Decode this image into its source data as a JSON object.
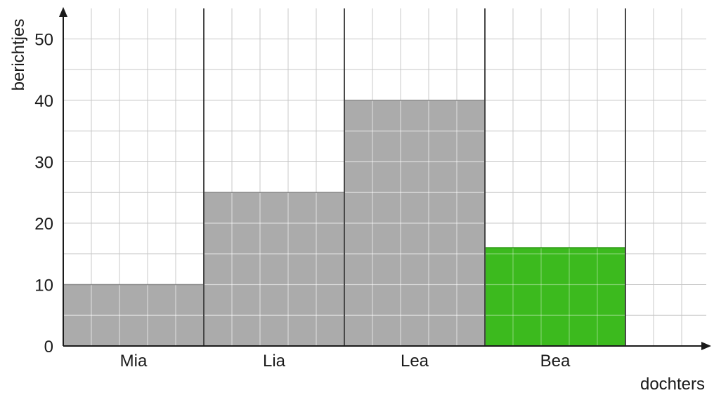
{
  "chart_data": {
    "type": "bar",
    "categories": [
      "Mia",
      "Lia",
      "Lea",
      "Bea"
    ],
    "series": [
      {
        "values": [
          10,
          25,
          40,
          16
        ]
      }
    ],
    "xlabel": "dochters",
    "ylabel": "berichtjes",
    "ylim": [
      0,
      55
    ],
    "yticks": [
      0,
      10,
      20,
      30,
      40,
      50
    ],
    "grid": true,
    "colors": {
      "bar": "#ababab",
      "highlight_bar": "#3cba1e",
      "grid_minor": "#c8c8c8",
      "grid_major": "#333333",
      "axis": "#1a1a1a"
    },
    "highlight_category": "Bea"
  }
}
